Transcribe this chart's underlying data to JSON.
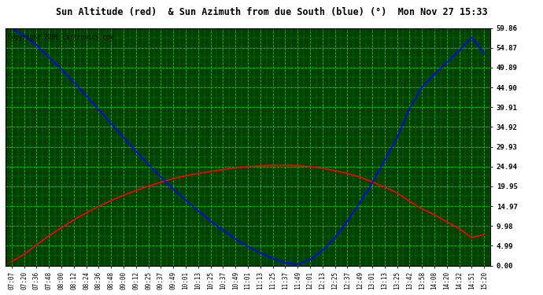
{
  "title": "Sun Altitude (red)  & Sun Azimuth from due South (blue) (°)  Mon Nov 27 15:33",
  "copyright": "Copyright 2006 Cartronics.com",
  "outer_bg": "#ffffff",
  "title_bg": "#c0c0c0",
  "plot_bg_color": "#004000",
  "grid_color": "#00cc00",
  "border_color": "#000000",
  "ylim": [
    0.0,
    59.86
  ],
  "yticks": [
    0.0,
    4.99,
    9.98,
    14.97,
    19.95,
    24.94,
    29.93,
    34.92,
    39.91,
    44.9,
    49.89,
    54.87,
    59.86
  ],
  "xtick_labels": [
    "07:07",
    "07:20",
    "07:36",
    "07:48",
    "08:00",
    "08:12",
    "08:24",
    "08:36",
    "08:48",
    "09:00",
    "09:12",
    "09:25",
    "09:37",
    "09:49",
    "10:01",
    "10:13",
    "10:25",
    "10:37",
    "10:49",
    "11:01",
    "11:13",
    "11:25",
    "11:37",
    "11:49",
    "12:01",
    "12:13",
    "12:25",
    "12:37",
    "12:49",
    "13:01",
    "13:13",
    "13:25",
    "13:42",
    "13:58",
    "14:08",
    "14:20",
    "14:32",
    "14:51",
    "15:20"
  ],
  "red_y": [
    1.0,
    2.8,
    5.2,
    7.5,
    9.5,
    11.5,
    13.3,
    14.9,
    16.4,
    17.7,
    18.9,
    20.0,
    21.0,
    21.9,
    22.6,
    23.2,
    23.7,
    24.2,
    24.6,
    24.9,
    25.1,
    25.3,
    25.3,
    25.2,
    24.9,
    24.5,
    23.9,
    23.2,
    22.3,
    21.1,
    19.8,
    18.3,
    16.2,
    14.3,
    12.8,
    11.0,
    9.3,
    7.0,
    7.8
  ],
  "blue_y": [
    59.8,
    58.0,
    55.5,
    52.5,
    49.5,
    46.2,
    42.8,
    39.3,
    35.8,
    32.3,
    28.8,
    25.5,
    22.3,
    19.3,
    16.5,
    13.8,
    11.2,
    8.9,
    6.7,
    4.8,
    3.2,
    1.8,
    0.7,
    0.3,
    1.5,
    3.8,
    7.0,
    11.2,
    15.8,
    20.8,
    26.5,
    32.2,
    39.5,
    45.0,
    48.2,
    51.2,
    54.2,
    57.5,
    53.5
  ],
  "line_width": 1.2
}
